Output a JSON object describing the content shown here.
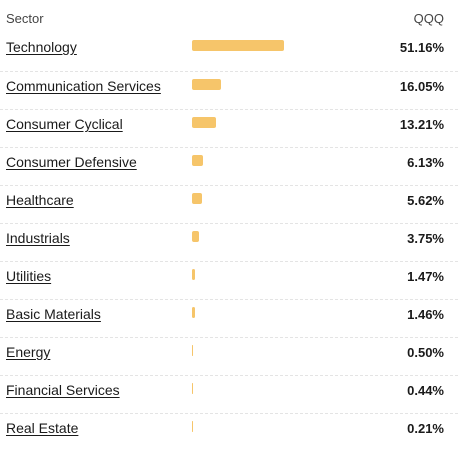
{
  "header": {
    "sector_label": "Sector",
    "fund_label": "QQQ"
  },
  "accent_color": "#f6c56a",
  "rows": [
    {
      "sector": "Technology",
      "value": "51.16%",
      "pct": 51.16
    },
    {
      "sector": "Communication Services",
      "value": "16.05%",
      "pct": 16.05
    },
    {
      "sector": "Consumer Cyclical",
      "value": "13.21%",
      "pct": 13.21
    },
    {
      "sector": "Consumer Defensive",
      "value": "6.13%",
      "pct": 6.13
    },
    {
      "sector": "Healthcare",
      "value": "5.62%",
      "pct": 5.62
    },
    {
      "sector": "Industrials",
      "value": "3.75%",
      "pct": 3.75
    },
    {
      "sector": "Utilities",
      "value": "1.47%",
      "pct": 1.47
    },
    {
      "sector": "Basic Materials",
      "value": "1.46%",
      "pct": 1.46
    },
    {
      "sector": "Energy",
      "value": "0.50%",
      "pct": 0.5
    },
    {
      "sector": "Financial Services",
      "value": "0.44%",
      "pct": 0.44
    },
    {
      "sector": "Real Estate",
      "value": "0.21%",
      "pct": 0.21
    }
  ]
}
